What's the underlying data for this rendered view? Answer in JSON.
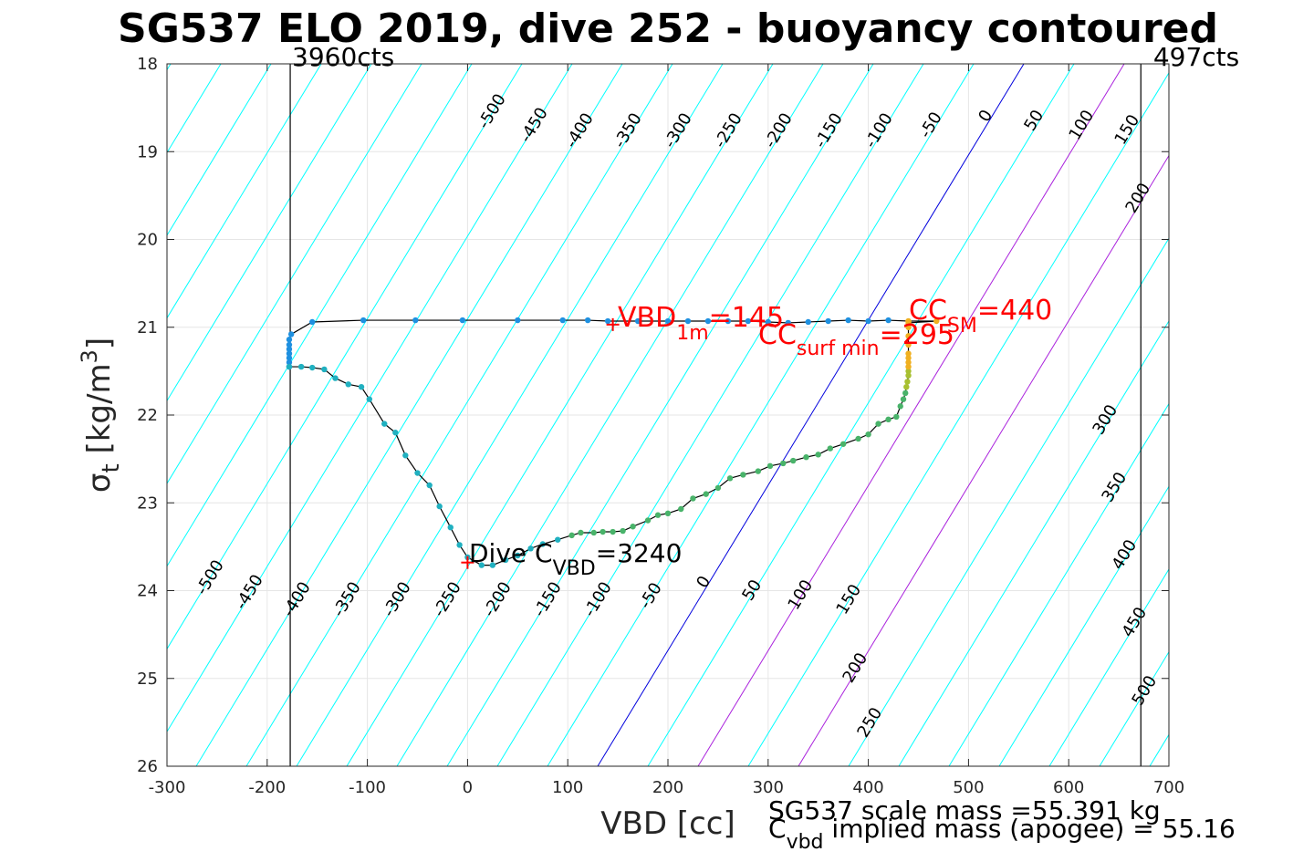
{
  "chart_data": {
    "type": "line",
    "title": "SG537 ELO 2019, dive 252 - buoyancy contoured",
    "xlabel": "VBD [cc]",
    "ylabel": {
      "main": "σ",
      "sub": "t",
      "unit_pre": " [kg/m",
      "unit_sup": "3",
      "unit_post": "]"
    },
    "xlim": [
      -300,
      700
    ],
    "ylim": [
      18,
      26
    ],
    "y_reversed": true,
    "grid": true,
    "x_ticks": [
      -300,
      -200,
      -100,
      0,
      100,
      200,
      300,
      400,
      500,
      600,
      700
    ],
    "x_tick_labels": [
      "-300",
      "-200",
      "-100",
      "0",
      "100",
      "200",
      "300",
      "400",
      "500",
      "600",
      "700"
    ],
    "y_ticks": [
      18,
      19,
      20,
      21,
      22,
      23,
      24,
      25,
      26
    ],
    "y_tick_labels": [
      "18",
      "19",
      "20",
      "21",
      "22",
      "23",
      "24",
      "25",
      "26"
    ],
    "contours": {
      "levels": [
        -500,
        -450,
        -400,
        -350,
        -300,
        -250,
        -200,
        -150,
        -100,
        -50,
        0,
        50,
        100,
        150,
        200,
        250,
        300,
        350,
        400,
        450,
        500
      ],
      "colors": {
        "negative": "#00ffff",
        "zero": "#0000dd",
        "low_positive": "#aa22dd",
        "positive": "#00ffff"
      },
      "top_labels": [
        "-500",
        "-450",
        "-400",
        "-350",
        "-300",
        "-250",
        "-200",
        "-150",
        "-100",
        "-50",
        "0",
        "50",
        "100",
        "150"
      ],
      "bottom_labels": [
        "-500",
        "-450",
        "-400",
        "-350",
        "-300",
        "-250",
        "-200",
        "-150",
        "-100",
        "-50",
        "0",
        "50",
        "100",
        "150",
        "200",
        "250"
      ],
      "right_labels": [
        "200",
        "300",
        "350",
        "400",
        "450",
        "500"
      ]
    },
    "vertical_lines": [
      {
        "x": -177,
        "label": "3960cts",
        "anchor": "start"
      },
      {
        "x": 672,
        "label": "497cts",
        "anchor": "end"
      }
    ],
    "series": [
      {
        "x": [
          440,
          468,
          440,
          420,
          400,
          380,
          360,
          340,
          320,
          300,
          280,
          260,
          240,
          220,
          200,
          170,
          140,
          120,
          95,
          50,
          -5,
          -52,
          -104,
          -155,
          -176,
          -178,
          -178,
          -178,
          -178,
          -178,
          -178,
          -178
        ],
        "y": [
          20.95,
          20.93,
          20.93,
          20.92,
          20.93,
          20.92,
          20.93,
          20.94,
          20.95,
          20.94,
          20.93,
          20.93,
          20.93,
          20.93,
          20.93,
          20.93,
          20.93,
          20.92,
          20.92,
          20.92,
          20.92,
          20.92,
          20.92,
          20.94,
          21.08,
          21.14,
          21.2,
          21.25,
          21.3,
          21.35,
          21.4,
          21.45
        ],
        "color": "#1e90e0"
      },
      {
        "x": [
          -178,
          -166,
          -155,
          -143,
          -132,
          -119,
          -106,
          -98,
          -83,
          -72,
          -62,
          -50,
          -38,
          -28,
          -17,
          -8,
          0,
          14,
          25,
          38,
          50,
          63,
          75,
          90,
          104,
          113,
          126,
          135,
          145,
          155,
          165,
          180,
          190,
          200,
          213,
          225,
          238,
          250,
          262,
          275,
          290,
          302,
          315,
          325,
          338,
          350,
          362,
          375,
          390,
          400,
          410,
          420,
          428,
          432,
          435,
          437,
          438,
          439,
          440,
          440,
          440,
          440,
          440,
          440,
          440,
          440,
          440,
          440
        ],
        "y": [
          21.45,
          21.45,
          21.46,
          21.48,
          21.58,
          21.65,
          21.68,
          21.82,
          22.1,
          22.2,
          22.46,
          22.66,
          22.8,
          23.04,
          23.28,
          23.48,
          23.62,
          23.71,
          23.71,
          23.65,
          23.6,
          23.52,
          23.47,
          23.42,
          23.37,
          23.34,
          23.34,
          23.33,
          23.33,
          23.32,
          23.27,
          23.2,
          23.14,
          23.12,
          23.07,
          22.95,
          22.9,
          22.83,
          22.72,
          22.68,
          22.64,
          22.58,
          22.55,
          22.52,
          22.48,
          22.45,
          22.38,
          22.33,
          22.27,
          22.22,
          22.1,
          22.05,
          22.02,
          21.9,
          21.82,
          21.75,
          21.68,
          21.62,
          21.55,
          21.5,
          21.45,
          21.4,
          21.35,
          21.3,
          21.2,
          21.1,
          21.0,
          20.93
        ],
        "color": "#49b36a"
      }
    ],
    "markers": [
      {
        "x": 145,
        "y": 20.97,
        "label_main": "VBD",
        "label_sub": "1m",
        "label_val": "=145",
        "color": "#ff0000"
      },
      {
        "x": 0,
        "y": 23.68,
        "label_main": "Dive C",
        "label_sub": "VBD",
        "label_val": "=3240",
        "color": "#ff0000"
      }
    ],
    "annotations": [
      {
        "main": "CC",
        "sub": "SM",
        "val": "=440",
        "color": "#ff0000"
      },
      {
        "main": "CC",
        "sub": "surf min",
        "val": "=295",
        "color": "#ff0000"
      }
    ],
    "footer": {
      "line1": "SG537 scale mass =55.391 kg",
      "line2_main": "C",
      "line2_sub": "vbd",
      "line2_rest": " implied mass (apogee) = 55.16"
    }
  }
}
